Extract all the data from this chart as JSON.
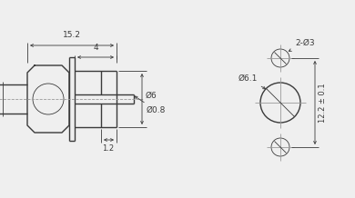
{
  "bg_color": "#efefef",
  "line_color": "#3a3a3a",
  "dim_color": "#3a3a3a",
  "centerline_color": "#999999",
  "lw": 1.0,
  "thin_lw": 0.6,
  "dim_lw": 0.6,
  "dim_15_2": "15.2",
  "dim_4": "4",
  "dim_1_2": "1.2",
  "dim_0_8": "Ø0.8",
  "dim_6": "Ø6",
  "dim_6_1": "Ø6.1",
  "dim_12_2": "12.2 ± 0.1",
  "dim_2_3": "2-Ø3"
}
